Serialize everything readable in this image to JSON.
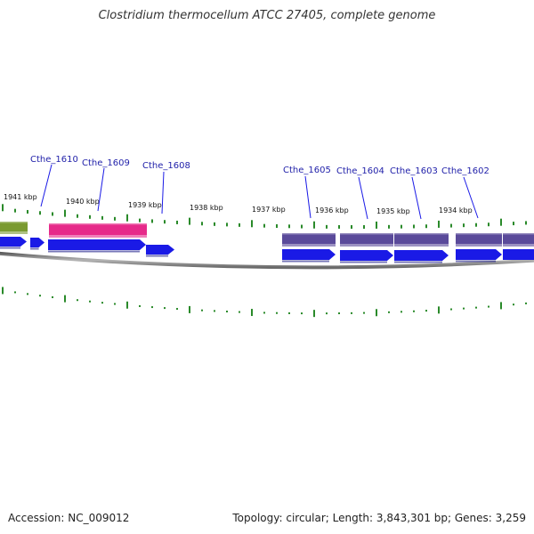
{
  "title": "Clostridium thermocellum ATCC 27405, complete genome",
  "footer": {
    "accession": "Accession: NC_009012",
    "stats": "Topology: circular; Length: 3,843,301 bp; Genes: 3,259"
  },
  "colors": {
    "tick": "#2a8a2a",
    "forward_cds": "#1a1ae6",
    "gene_label": "#2222aa",
    "reverse_cds": "#5a4a9a",
    "olive_gene": "#7a9a30",
    "pink_gene": "#e62a8a",
    "backbone": "#8a8a8a"
  },
  "icons": [
    "gene-arrow-icon"
  ],
  "scale_labels": [
    "1941 kbp",
    "1940 kbp",
    "1939 kbp",
    "1938 kbp",
    "1937 kbp",
    "1936 kbp",
    "1935 kbp",
    "1934 kbp"
  ],
  "gene_labels": [
    "Cthe_1610",
    "Cthe_1609",
    "Cthe_1608",
    "Cthe_1605",
    "Cthe_1604",
    "Cthe_1603",
    "Cthe_1602"
  ]
}
